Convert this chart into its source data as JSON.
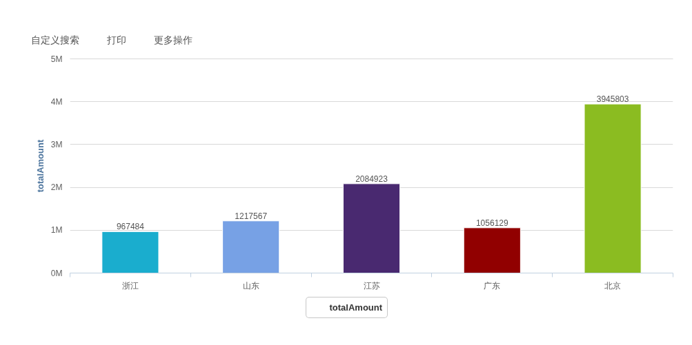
{
  "chart_data": {
    "type": "bar",
    "ylabel": "totalAmount",
    "categories": [
      "浙江",
      "山东",
      "江苏",
      "广东",
      "北京"
    ],
    "series": [
      {
        "name": "totalAmount",
        "values": [
          967484,
          1217567,
          2084923,
          1056129,
          3945803
        ],
        "colors": [
          "#1aadce",
          "#77a1e5",
          "#492970",
          "#910000",
          "#8bbc21"
        ]
      }
    ],
    "ylim": [
      0,
      5000000
    ],
    "yticks": [
      {
        "value": 0,
        "label": "0M"
      },
      {
        "value": 1000000,
        "label": "1M"
      },
      {
        "value": 2000000,
        "label": "2M"
      },
      {
        "value": 3000000,
        "label": "3M"
      },
      {
        "value": 4000000,
        "label": "4M"
      },
      {
        "value": 5000000,
        "label": "5M"
      }
    ],
    "grid": "y",
    "legend": "bottom",
    "data_labels": true,
    "annotations": [
      "自定义搜索",
      "打印",
      "更多操作"
    ]
  }
}
